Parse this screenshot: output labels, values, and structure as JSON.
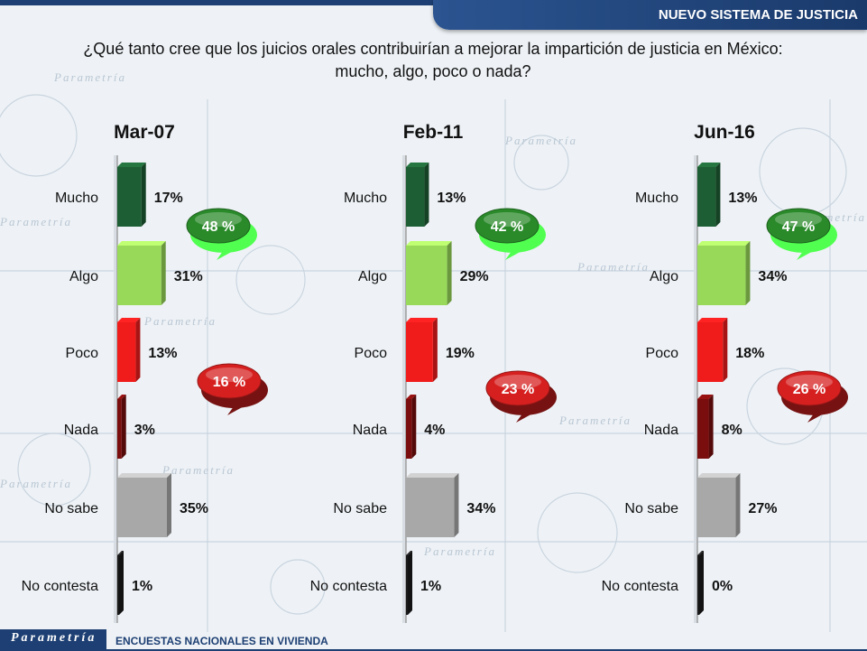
{
  "header": {
    "title": "NUEVO SISTEMA DE JUSTICIA"
  },
  "question": {
    "line1": "¿Qué tanto cree que los juicios orales contribuirían a mejorar la impartición de justicia en México:",
    "line2": "mucho, algo, poco o nada?"
  },
  "footer": {
    "logo": "Parametría",
    "text": "ENCUESTAS NACIONALES EN VIVIENDA"
  },
  "watermark": {
    "text": "Parametría"
  },
  "colors": {
    "mucho": "#1e5e34",
    "algo": "#99d95a",
    "poco": "#f01c1c",
    "nada": "#7a0e0e",
    "no_sabe": "#a8a8a8",
    "no_contesta": "#1a1a1a",
    "bubble_green": "#2a8a2a",
    "bubble_red": "#d62020"
  },
  "chart_data": [
    {
      "type": "bar",
      "title": "Mar-07",
      "categories": [
        "Mucho",
        "Algo",
        "Poco",
        "Nada",
        "No sabe",
        "No contesta"
      ],
      "values": [
        17,
        31,
        13,
        3,
        35,
        1
      ],
      "value_labels": [
        "17%",
        "31%",
        "13%",
        "3%",
        "35%",
        "1%"
      ],
      "annotations": [
        {
          "text": "48 %",
          "color": "green",
          "group": [
            "Mucho",
            "Algo"
          ]
        },
        {
          "text": "16 %",
          "color": "red",
          "group": [
            "Poco",
            "Nada"
          ]
        }
      ],
      "xlim": [
        0,
        35
      ]
    },
    {
      "type": "bar",
      "title": "Feb-11",
      "categories": [
        "Mucho",
        "Algo",
        "Poco",
        "Nada",
        "No sabe",
        "No contesta"
      ],
      "values": [
        13,
        29,
        19,
        4,
        34,
        1
      ],
      "value_labels": [
        "13%",
        "29%",
        "19%",
        "4%",
        "34%",
        "1%"
      ],
      "annotations": [
        {
          "text": "42 %",
          "color": "green",
          "group": [
            "Mucho",
            "Algo"
          ]
        },
        {
          "text": "23 %",
          "color": "red",
          "group": [
            "Poco",
            "Nada"
          ]
        }
      ],
      "xlim": [
        0,
        35
      ]
    },
    {
      "type": "bar",
      "title": "Jun-16",
      "categories": [
        "Mucho",
        "Algo",
        "Poco",
        "Nada",
        "No sabe",
        "No contesta"
      ],
      "values": [
        13,
        34,
        18,
        8,
        27,
        0
      ],
      "value_labels": [
        "13%",
        "34%",
        "18%",
        "8%",
        "27%",
        "0%"
      ],
      "annotations": [
        {
          "text": "47 %",
          "color": "green",
          "group": [
            "Mucho",
            "Algo"
          ]
        },
        {
          "text": "26 %",
          "color": "red",
          "group": [
            "Poco",
            "Nada"
          ]
        }
      ],
      "xlim": [
        0,
        35
      ]
    }
  ]
}
